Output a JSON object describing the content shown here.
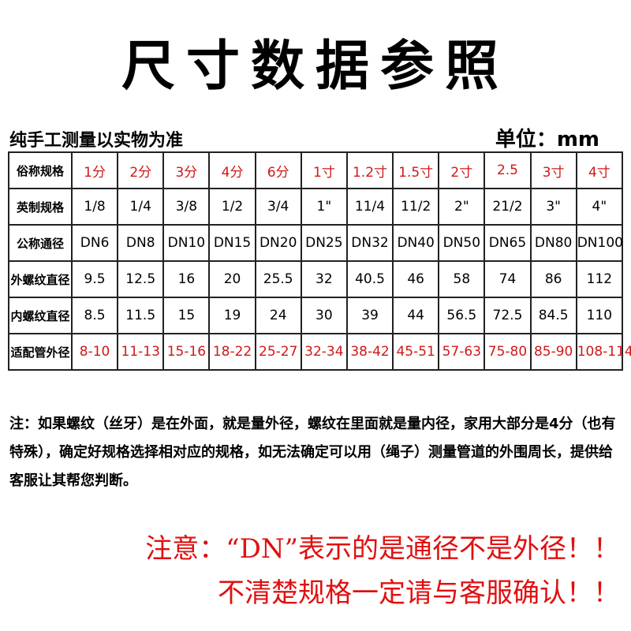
{
  "header": {
    "title": "尺寸数据参照",
    "subtitle": "纯手工测量以实物为准",
    "unit": "单位：mm"
  },
  "table": {
    "rows": [
      [
        "俗称规格",
        "1分",
        "2分",
        "3分",
        "4分",
        "6分",
        "1寸",
        "1.2寸",
        "1.5寸",
        "2寸",
        "2.5",
        "3寸",
        "4寸"
      ],
      [
        "英制规格",
        "1/8",
        "1/4",
        "3/8",
        "1/2",
        "3/4",
        "1\"",
        "11/4",
        "11/2",
        "2\"",
        "21/2",
        "3\"",
        "4\""
      ],
      [
        "公称通径",
        "DN6",
        "DN8",
        "DN10",
        "DN15",
        "DN20",
        "DN25",
        "DN32",
        "DN40",
        "DN50",
        "DN65",
        "DN80",
        "DN100"
      ],
      [
        "外螺纹直径",
        "9.5",
        "12.5",
        "16",
        "20",
        "25.5",
        "32",
        "40.5",
        "46",
        "58",
        "74",
        "86",
        "112"
      ],
      [
        "内螺纹直径",
        "8.5",
        "11.5",
        "15",
        "19",
        "24",
        "30",
        "39",
        "44",
        "56.5",
        "72.5",
        "84.5",
        "110"
      ],
      [
        "适配管外径",
        "8-10",
        "11-13",
        "15-16",
        "18-22",
        "25-27",
        "32-34",
        "38-42",
        "45-51",
        "57-63",
        "75-80",
        "85-90",
        "108-114"
      ]
    ]
  },
  "note": "注：如果螺纹（丝牙）是在外面，就是量外径，螺纹在里面就是量内径，家用大部分是4分（也有特殊），确定好规格选择相对应的规格，如无法确定可以用（绳子）测量管道的外围周长，提供给客服让其帮您判断。",
  "warnings": [
    "注意：“DN”表示的是通径不是外径！！",
    "不清楚规格一定请与客服确认！！"
  ]
}
